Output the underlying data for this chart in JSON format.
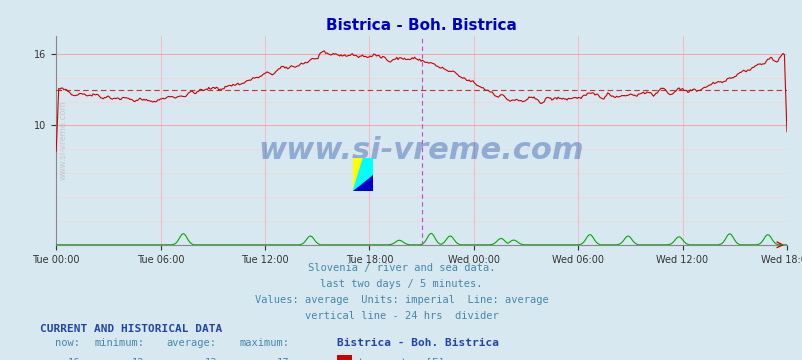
{
  "title": "Bistrica - Boh. Bistrica",
  "title_color": "#0000cc",
  "bg_color": "#d8e8f0",
  "plot_bg_color": "#d8e8f0",
  "grid_color_major": "#ff9999",
  "grid_color_minor": "#dddddd",
  "x_tick_labels": [
    "Tue 00:00",
    "Tue 06:00",
    "Tue 12:00",
    "Tue 18:00",
    "Wed 00:00",
    "Wed 06:00",
    "Wed 12:00",
    "Wed 18:00"
  ],
  "y_ticks": [
    10,
    16
  ],
  "y_lim": [
    0,
    17.5
  ],
  "temp_color": "#cc0000",
  "flow_color": "#00aa00",
  "avg_line_color": "#cc0000",
  "avg_line_value": 13,
  "divider_color": "#cc44cc",
  "watermark_text": "www.si-vreme.com",
  "watermark_color": "#2255aa",
  "watermark_alpha": 0.4,
  "caption_lines": [
    "Slovenia / river and sea data.",
    "last two days / 5 minutes.",
    "Values: average  Units: imperial  Line: average",
    "vertical line - 24 hrs  divider"
  ],
  "caption_color": "#4488aa",
  "footer_title": "CURRENT AND HISTORICAL DATA",
  "footer_color": "#4488aa",
  "footer_bold_color": "#2244aa",
  "now": 16,
  "minimum": 12,
  "average": 13,
  "maximum": 17,
  "now_flow": 0,
  "min_flow": 0,
  "avg_flow": 0,
  "max_flow": 1,
  "n_points": 576
}
